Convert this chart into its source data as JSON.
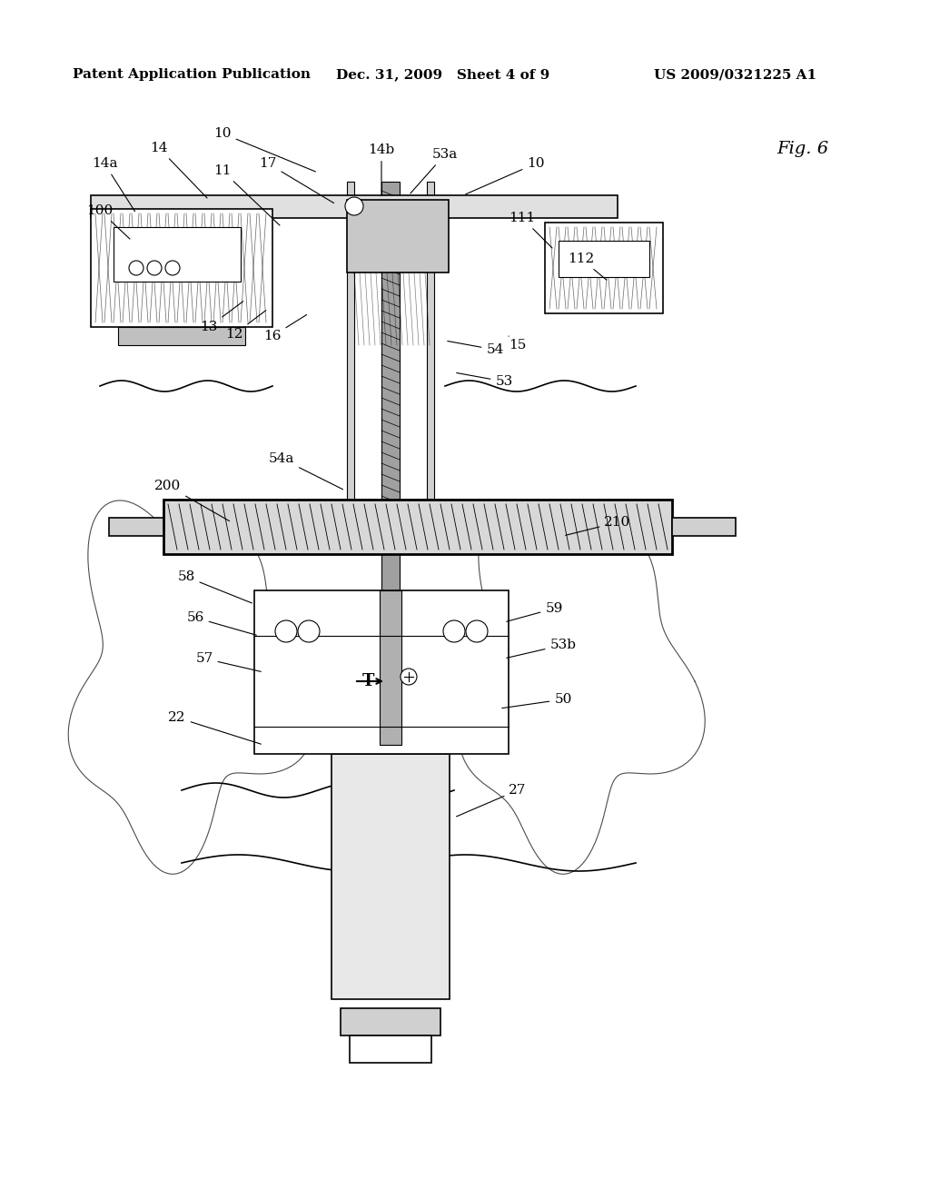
{
  "bg_color": "#ffffff",
  "header_left": "Patent Application Publication",
  "header_mid": "Dec. 31, 2009   Sheet 4 of 9",
  "header_right": "US 2009/0321225 A1",
  "fig_label": "Fig. 6",
  "title_fontsize": 11,
  "label_fontsize": 11
}
